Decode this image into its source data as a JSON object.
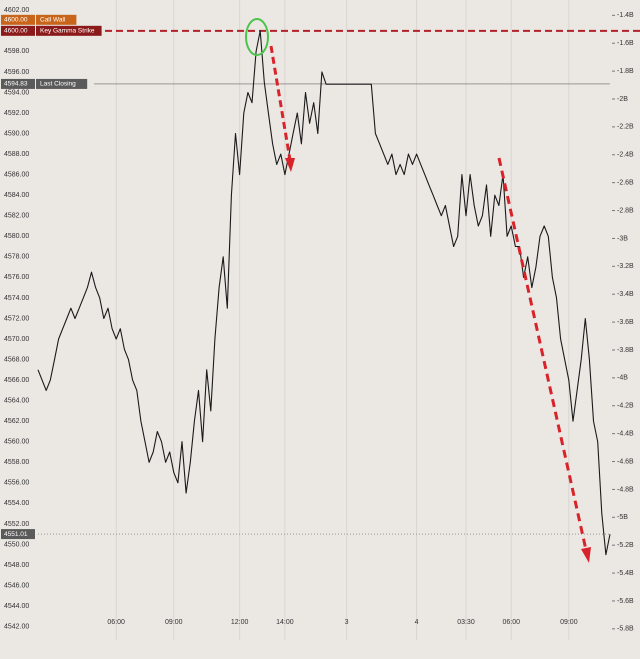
{
  "chart_data": {
    "type": "line",
    "categories": [
      null,
      null,
      null,
      null,
      null,
      null,
      null,
      null,
      null,
      null,
      null,
      null,
      null,
      null,
      null,
      null,
      null,
      null,
      null,
      "06:00",
      null,
      null,
      null,
      null,
      null,
      null,
      null,
      null,
      null,
      null,
      null,
      null,
      null,
      "09:00",
      null,
      null,
      null,
      null,
      null,
      null,
      null,
      null,
      null,
      null,
      null,
      null,
      null,
      null,
      null,
      "12:00",
      null,
      null,
      null,
      null,
      null,
      null,
      null,
      null,
      null,
      null,
      "14:00",
      null,
      null,
      null,
      null,
      null,
      null,
      null,
      null,
      null,
      null,
      null,
      null,
      null,
      null,
      "3",
      null,
      null,
      null,
      null,
      null,
      null,
      null,
      null,
      null,
      null,
      null,
      null,
      null,
      null,
      null,
      null,
      "4",
      null,
      null,
      null,
      null,
      null,
      null,
      null,
      null,
      null,
      null,
      null,
      "03:30",
      null,
      null,
      null,
      null,
      null,
      null,
      null,
      null,
      null,
      null,
      "06:00",
      null,
      null,
      null,
      null,
      null,
      null,
      null,
      null,
      null,
      null,
      null,
      null,
      null,
      "09:00",
      null,
      null,
      null,
      null,
      null,
      null,
      null,
      null,
      null,
      null
    ],
    "series": [
      {
        "color": "#1a1a1a",
        "values": [
          4567,
          4566,
          4565,
          4566,
          4568,
          4570,
          4571,
          4572,
          4573,
          4572,
          4573,
          4574,
          4575,
          4576.5,
          4575,
          4574,
          4572,
          4573,
          4571,
          4570,
          4571,
          4569,
          4568,
          4566,
          4565,
          4562,
          4560,
          4558,
          4559,
          4561,
          4560,
          4558,
          4559,
          4557,
          4556,
          4560,
          4555,
          4558,
          4562,
          4565,
          4560,
          4567,
          4563,
          4570,
          4575,
          4578,
          4573,
          4584,
          4590,
          4586,
          4592,
          4594,
          4593,
          4598,
          4600,
          4595,
          4592,
          4589,
          4587,
          4588,
          4586,
          4588,
          4590,
          4592,
          4589,
          4594,
          4591,
          4593,
          4590,
          4596,
          4594.8,
          4594.8,
          4594.8,
          4594.8,
          4594.8,
          4594.8,
          4594.8,
          4594.8,
          4594.8,
          4594.8,
          4594.8,
          4594.8,
          4590,
          4589,
          4588,
          4587,
          4588,
          4586,
          4587,
          4586,
          4588,
          4587,
          4588,
          4587,
          4586,
          4585,
          4584,
          4583,
          4582,
          4583,
          4581,
          4579,
          4580,
          4586,
          4582,
          4586,
          4583,
          4581,
          4582,
          4585,
          4580,
          4584,
          4583,
          4586,
          4580,
          4581,
          4579,
          4579,
          4576,
          4578,
          4575,
          4577,
          4580,
          4581,
          4580,
          4576,
          4574,
          4570,
          4568,
          4566,
          4562,
          4565,
          4568,
          4572,
          4568,
          4562,
          4560,
          4553,
          4549,
          4551
        ]
      }
    ],
    "ylim": [
      4540.7,
      4603
    ],
    "yticks": [
      {
        "value": 4542,
        "label": "4542.00"
      },
      {
        "value": 4544,
        "label": "4544.00"
      },
      {
        "value": 4546,
        "label": "4546.00"
      },
      {
        "value": 4548,
        "label": "4548.00"
      },
      {
        "value": 4550,
        "label": "4550.00"
      },
      {
        "value": 4552,
        "label": "4552.00"
      },
      {
        "value": 4554,
        "label": "4554.00"
      },
      {
        "value": 4556,
        "label": "4556.00"
      },
      {
        "value": 4558,
        "label": "4558.00"
      },
      {
        "value": 4560,
        "label": "4560.00"
      },
      {
        "value": 4562,
        "label": "4562.00"
      },
      {
        "value": 4564,
        "label": "4564.00"
      },
      {
        "value": 4566,
        "label": "4566.00"
      },
      {
        "value": 4568,
        "label": "4568.00"
      },
      {
        "value": 4570,
        "label": "4570.00"
      },
      {
        "value": 4572,
        "label": "4572.00"
      },
      {
        "value": 4574,
        "label": "4574.00"
      },
      {
        "value": 4576,
        "label": "4576.00"
      },
      {
        "value": 4578,
        "label": "4578.00"
      },
      {
        "value": 4580,
        "label": "4580.00"
      },
      {
        "value": 4582,
        "label": "4582.00"
      },
      {
        "value": 4584,
        "label": "4584.00"
      },
      {
        "value": 4586,
        "label": "4586.00"
      },
      {
        "value": 4588,
        "label": "4588.00"
      },
      {
        "value": 4590,
        "label": "4590.00"
      },
      {
        "value": 4592,
        "label": "4592.00"
      },
      {
        "value": 4594,
        "label": "4594.00"
      },
      {
        "value": 4596,
        "label": "4596.00"
      },
      {
        "value": 4598,
        "label": "4598.00"
      },
      {
        "value": 4600,
        "label": "4600.00"
      },
      {
        "value": 4602,
        "label": "4602.00"
      }
    ],
    "y2lim": [
      -5.88,
      -1.29
    ],
    "y2ticks": [
      {
        "value": -1.4,
        "label": "-1.4B"
      },
      {
        "value": -1.6,
        "label": "-1.6B"
      },
      {
        "value": -1.8,
        "label": "-1.8B"
      },
      {
        "value": -2,
        "label": "-2B"
      },
      {
        "value": -2.2,
        "label": "-2.2B"
      },
      {
        "value": -2.4,
        "label": "-2.4B"
      },
      {
        "value": -2.6,
        "label": "-2.6B"
      },
      {
        "value": -2.8,
        "label": "-2.8B"
      },
      {
        "value": -3,
        "label": "-3B"
      },
      {
        "value": -3.2,
        "label": "-3.2B"
      },
      {
        "value": -3.4,
        "label": "-3.4B"
      },
      {
        "value": -3.6,
        "label": "-3.6B"
      },
      {
        "value": -3.8,
        "label": "-3.8B"
      },
      {
        "value": -4,
        "label": "-4B"
      },
      {
        "value": -4.2,
        "label": "-4.2B"
      },
      {
        "value": -4.4,
        "label": "-4.4B"
      },
      {
        "value": -4.6,
        "label": "-4.6B"
      },
      {
        "value": -4.8,
        "label": "-4.8B"
      },
      {
        "value": -5,
        "label": "-5B"
      },
      {
        "value": -5.2,
        "label": "-5.2B"
      },
      {
        "value": -5.4,
        "label": "-5.4B"
      },
      {
        "value": -5.6,
        "label": "-5.6B"
      },
      {
        "value": -5.8,
        "label": "-5.8B"
      }
    ],
    "grid": true,
    "reference_lines": [
      {
        "value": 4600,
        "label": "4600.00",
        "name": "Call Wall",
        "color": "#c8651b",
        "style": "dashed"
      },
      {
        "value": 4600,
        "label": "4600.00",
        "name": "Key Gamma Strike",
        "color": "#8b1a1a",
        "style": "dashed"
      },
      {
        "value": 4594.83,
        "label": "4594.83",
        "name": "Last Closing",
        "color": "#5a5a5a",
        "style": "solid"
      },
      {
        "value": 4551.01,
        "label": "4551.01",
        "color": "#5a5a5a",
        "style": "dotted"
      }
    ]
  }
}
